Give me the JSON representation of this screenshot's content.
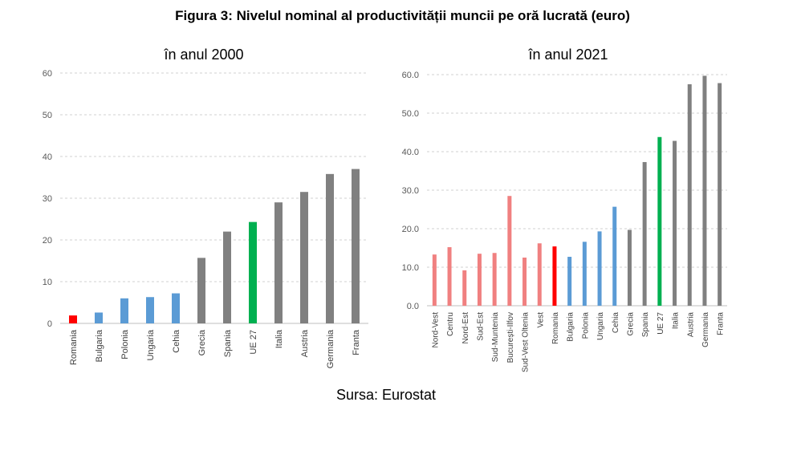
{
  "figure": {
    "title": "Figura 3: Nivelul nominal al productivității muncii pe oră lucrată (euro)",
    "source": "Sursa: Eurostat"
  },
  "colors": {
    "romania": "#ff0000",
    "romania_regions": "#f08080",
    "cee": "#5b9bd5",
    "western": "#808080",
    "eu27": "#00b050"
  },
  "chart_data": [
    {
      "type": "bar",
      "title": "în anul 2000",
      "categories": [
        "Romania",
        "Bulgaria",
        "Polonia",
        "Ungaria",
        "Cehia",
        "Grecia",
        "Spania",
        "UE 27",
        "Italia",
        "Austria",
        "Germania",
        "Franta"
      ],
      "values": [
        1.9,
        2.6,
        6.0,
        6.3,
        7.2,
        15.7,
        22.0,
        24.3,
        29.0,
        31.5,
        35.8,
        37.0
      ],
      "bar_colors": [
        "#ff0000",
        "#5b9bd5",
        "#5b9bd5",
        "#5b9bd5",
        "#5b9bd5",
        "#808080",
        "#808080",
        "#00b050",
        "#808080",
        "#808080",
        "#808080",
        "#808080"
      ],
      "ylim": [
        0,
        60
      ],
      "yticks": [
        "0",
        "10",
        "20",
        "30",
        "40",
        "50",
        "60"
      ],
      "grid": true,
      "legend": "none"
    },
    {
      "type": "bar",
      "title": "în anul 2021",
      "categories": [
        "Nord-Vest",
        "Centru",
        "Nord-Est",
        "Sud-Est",
        "Sud-Muntenia",
        "București-Ilfov",
        "Sud-Vest Oltenia",
        "Vest",
        "Romania",
        "Bulgaria",
        "Polonia",
        "Ungaria",
        "Cehia",
        "Grecia",
        "Spania",
        "UE 27",
        "Italia",
        "Austria",
        "Germania",
        "Franta"
      ],
      "values": [
        13.3,
        15.2,
        9.2,
        13.5,
        13.7,
        28.5,
        12.5,
        16.2,
        15.4,
        12.7,
        16.6,
        19.3,
        25.7,
        19.7,
        37.3,
        43.8,
        42.8,
        57.5,
        59.7,
        57.8
      ],
      "bar_colors": [
        "#f08080",
        "#f08080",
        "#f08080",
        "#f08080",
        "#f08080",
        "#f08080",
        "#f08080",
        "#f08080",
        "#ff0000",
        "#5b9bd5",
        "#5b9bd5",
        "#5b9bd5",
        "#5b9bd5",
        "#808080",
        "#808080",
        "#00b050",
        "#808080",
        "#808080",
        "#808080",
        "#808080"
      ],
      "ylim": [
        0,
        60
      ],
      "yticks": [
        "0.0",
        "10.0",
        "20.0",
        "30.0",
        "40.0",
        "50.0",
        "60.0"
      ],
      "grid": true,
      "legend": "none"
    }
  ]
}
